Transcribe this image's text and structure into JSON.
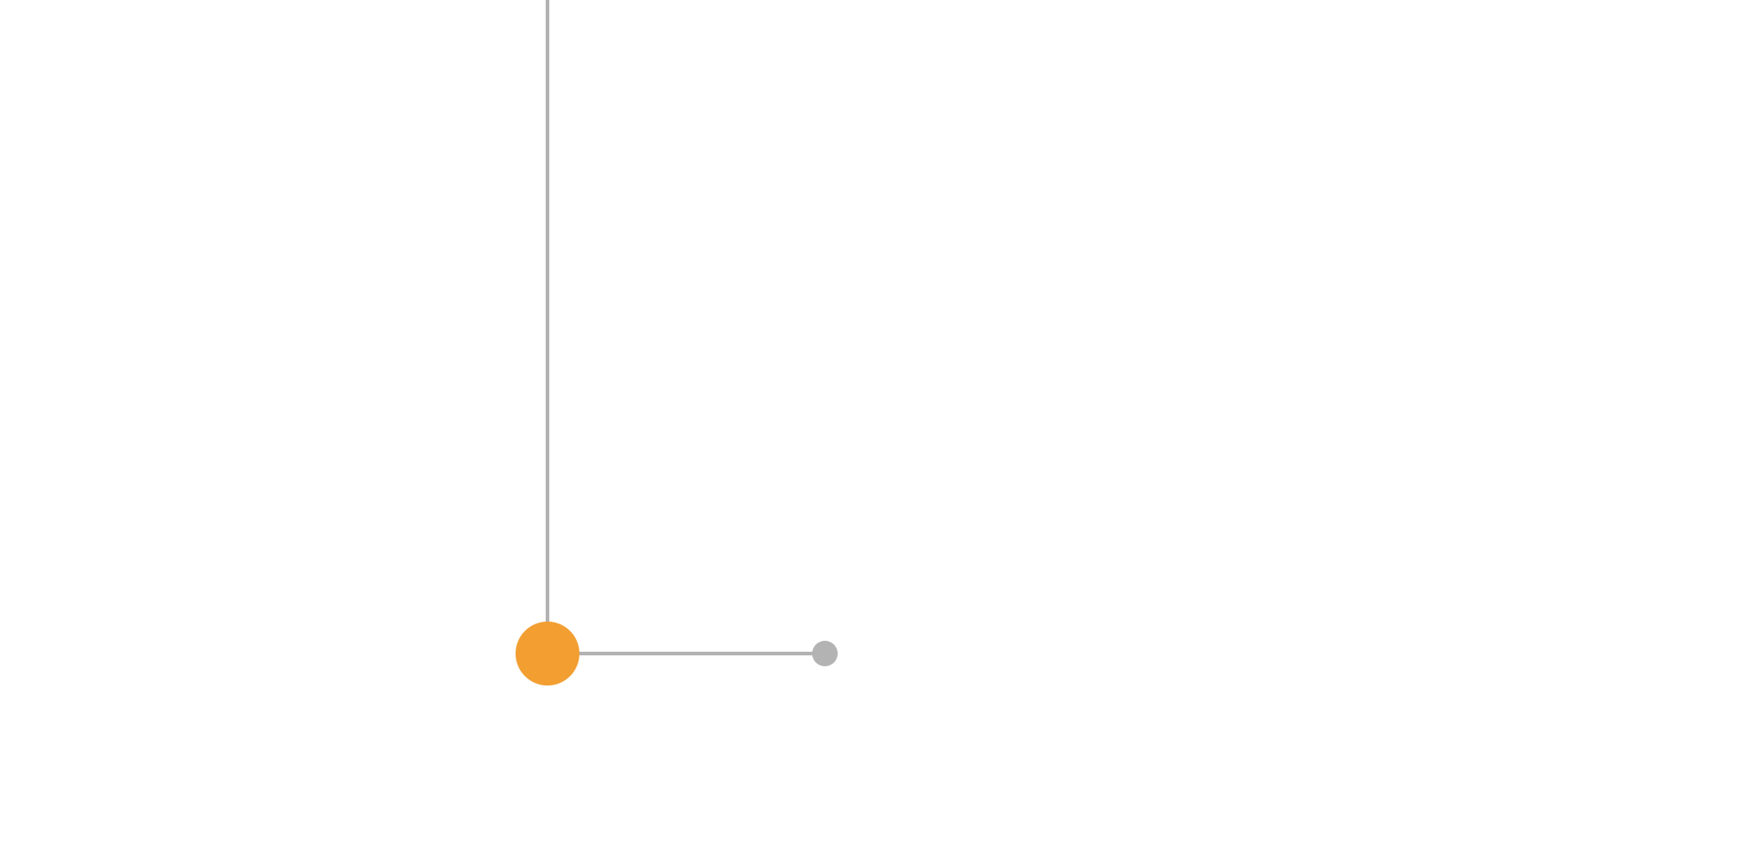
{
  "diagram": {
    "colors": {
      "background": "#ffffff",
      "connector": "#b3b3b3",
      "main_node": "#f29e31",
      "branch_node": "#b3b3b3"
    },
    "nodes": [
      {
        "id": "main-node",
        "kind": "main",
        "label": ""
      },
      {
        "id": "branch-node",
        "kind": "branch",
        "label": ""
      }
    ],
    "edges": [
      {
        "from": "offscreen-top",
        "to": "main-node"
      },
      {
        "from": "main-node",
        "to": "branch-node"
      }
    ]
  }
}
